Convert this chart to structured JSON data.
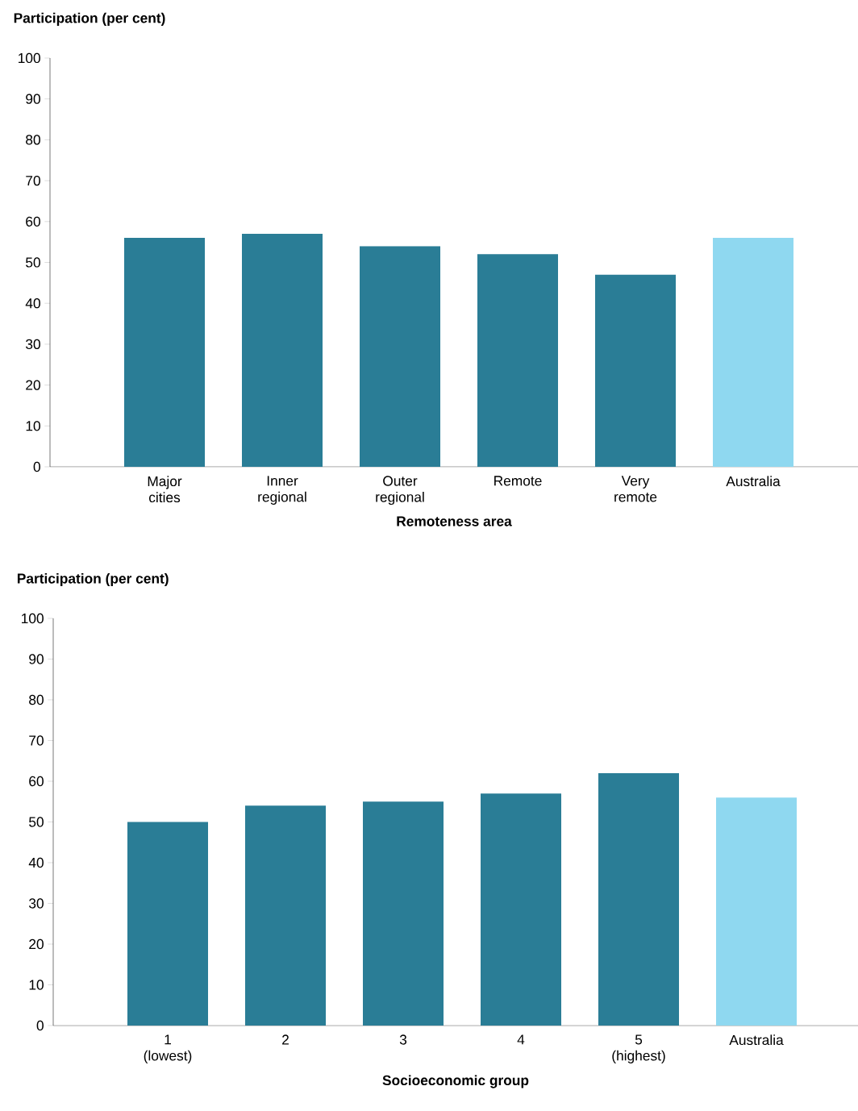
{
  "chart_data": [
    {
      "type": "bar",
      "ylabel": "Participation (per cent)",
      "xlabel": "Remoteness area",
      "categories": [
        "Major cities",
        "Inner regional",
        "Outer regional",
        "Remote",
        "Very remote",
        "Australia"
      ],
      "values": [
        56,
        57,
        54,
        52,
        47,
        56
      ],
      "colors": [
        "#2a7d96",
        "#2a7d96",
        "#2a7d96",
        "#2a7d96",
        "#2a7d96",
        "#8fd8f0"
      ],
      "ylim": [
        0,
        100
      ],
      "yticks": [
        0,
        10,
        20,
        30,
        40,
        50,
        60,
        70,
        80,
        90,
        100
      ]
    },
    {
      "type": "bar",
      "ylabel": "Participation (per cent)",
      "xlabel": "Socioeconomic group",
      "categories": [
        "1 (lowest)",
        "2",
        "3",
        "4",
        "5 (highest)",
        "Australia"
      ],
      "values": [
        50,
        54,
        55,
        57,
        62,
        56
      ],
      "colors": [
        "#2a7d96",
        "#2a7d96",
        "#2a7d96",
        "#2a7d96",
        "#2a7d96",
        "#8fd8f0"
      ],
      "ylim": [
        0,
        100
      ],
      "yticks": [
        0,
        10,
        20,
        30,
        40,
        50,
        60,
        70,
        80,
        90,
        100
      ]
    }
  ]
}
